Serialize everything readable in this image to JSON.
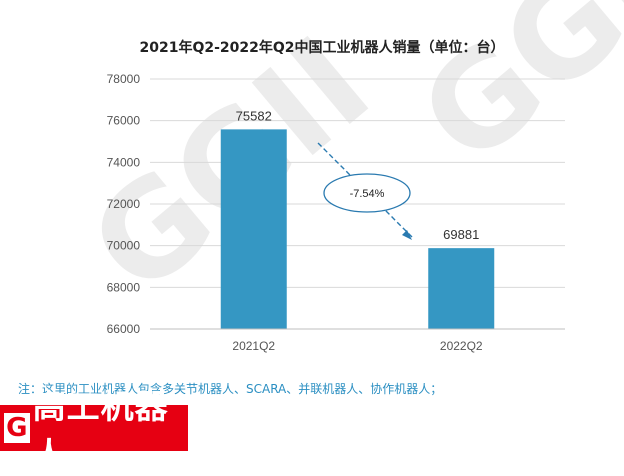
{
  "chart_data": {
    "type": "bar",
    "title": "2021年Q2-2022年Q2中国工业机器人销量（单位：台）",
    "categories": [
      "2021Q2",
      "2022Q2"
    ],
    "values": [
      75582,
      69881
    ],
    "ylim": [
      66000,
      78000
    ],
    "yticks": [
      66000,
      68000,
      70000,
      72000,
      74000,
      76000,
      78000
    ],
    "bar_color": "#3597c3",
    "grid": true,
    "annotation": "-7.54%"
  },
  "watermark": "GGII",
  "note": "注：这里的工业机器人包含多关节机器人、SCARA、并联机器人、协作机器人；",
  "brand": {
    "letter": "G",
    "name": "高工机器人",
    "color": "#e60012"
  }
}
